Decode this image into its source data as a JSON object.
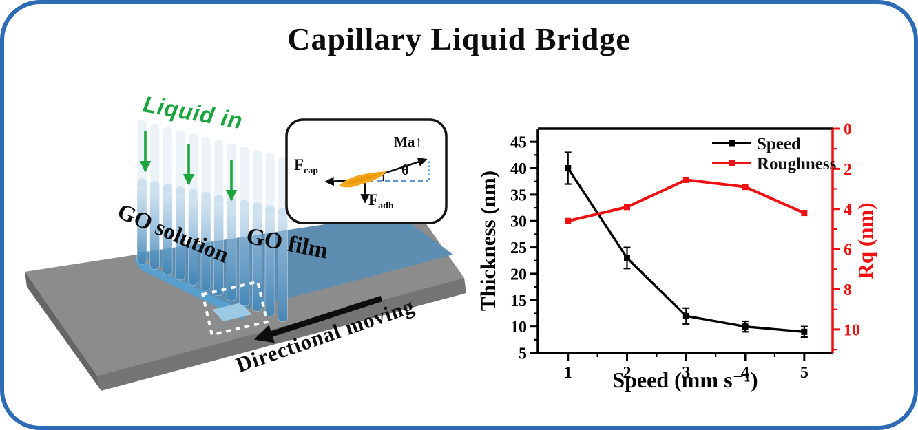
{
  "title": "Capillary Liquid Bridge",
  "frame": {
    "border_color": "#2d6cb5",
    "background": "#ffffff"
  },
  "schematic": {
    "labels": {
      "liquid_in": "Liquid in",
      "go_solution": "GO solution",
      "go_film": "GO film",
      "directional_moving": "Directional moving"
    },
    "inset": {
      "ma": "Ma↑",
      "theta": "θ",
      "f_cap": {
        "base": "F",
        "sub": "cap"
      },
      "f_adh": {
        "base": "F",
        "sub": "adh"
      }
    },
    "colors": {
      "liquid_green": "#1ca53e",
      "film_blue": "#5e8db2",
      "tube_blue": "#4f97c9",
      "substrate_gray": "#8c8c8c",
      "substrate_front": "#6d6d6d",
      "flake_yellow": "#f3a81d",
      "dash_blue": "#5b9bd5"
    }
  },
  "chart_data": {
    "type": "line",
    "x": [
      1,
      2,
      3,
      4,
      5
    ],
    "series": [
      {
        "name": "Speed",
        "axis": "left",
        "color": "#000000",
        "marker": "square",
        "values": [
          40,
          23,
          12,
          10,
          9
        ],
        "errors": [
          3,
          2,
          1.5,
          1,
          1
        ]
      },
      {
        "name": "Roughness",
        "axis": "right",
        "color": "#ee1111",
        "marker": "square",
        "values": [
          4.6,
          3.9,
          2.55,
          2.9,
          4.2
        ]
      }
    ],
    "axes": {
      "bottom": {
        "label": "Speed (mm s⁻¹)",
        "min": 0.49,
        "max": 5.48,
        "major_ticks": [
          1,
          2,
          3,
          4,
          5
        ],
        "minor_ticks": [
          1.5,
          2.5,
          3.5,
          4.5
        ],
        "color": "#000000"
      },
      "left": {
        "label": "Thickness (nm)",
        "min": 5,
        "max": 47.5,
        "major_ticks": [
          5,
          10,
          15,
          20,
          25,
          30,
          35,
          40,
          45
        ],
        "minor_ticks": [
          7.5,
          12.5,
          17.5,
          22.5,
          27.5,
          32.5,
          37.5,
          42.5
        ],
        "color": "#000000"
      },
      "right": {
        "label": "Rq (nm)",
        "min": 0,
        "max": 11.17,
        "inverted": true,
        "major_ticks": [
          0,
          2,
          4,
          6,
          8,
          10
        ],
        "minor_ticks": [
          1,
          3,
          5,
          7,
          9,
          11
        ],
        "color": "#ee1111"
      }
    },
    "legend": {
      "position": "top-right",
      "entries": [
        "Speed",
        "Roughness"
      ]
    },
    "grid": false
  }
}
